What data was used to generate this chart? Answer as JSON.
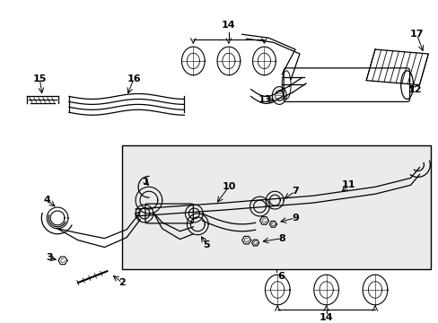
{
  "bg_color": "#ffffff",
  "box_bg": "#ebebeb",
  "line_color": "#000000",
  "fs": 8,
  "fig_width": 4.89,
  "fig_height": 3.6,
  "dpi": 100
}
